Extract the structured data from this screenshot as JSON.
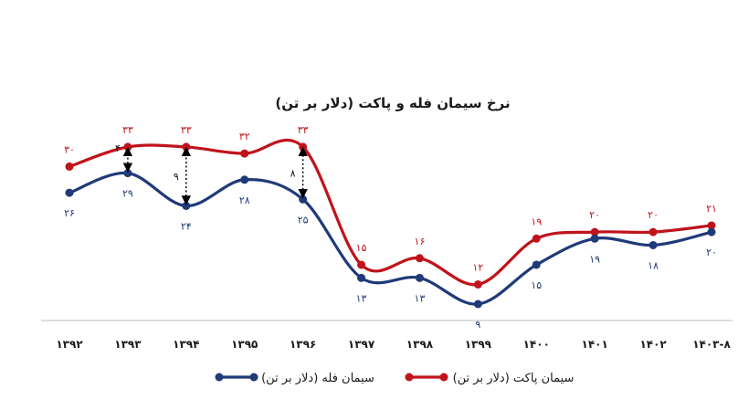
{
  "chart_data": {
    "type": "line",
    "title": "نرخ سیمان فله و پاکت (دلار بر تن)",
    "categories": [
      "۱۳۹۲",
      "۱۳۹۳",
      "۱۳۹۴",
      "۱۳۹۵",
      "۱۳۹۶",
      "۱۳۹۷",
      "۱۳۹۸",
      "۱۳۹۹",
      "۱۴۰۰",
      "۱۴۰۱",
      "۱۴۰۲",
      "۱۴۰۳-۸"
    ],
    "series": [
      {
        "name": "سیمان پاکت (دلار بر تن)",
        "color": "#c0131b",
        "values": [
          30,
          33,
          33,
          32,
          33,
          15,
          16,
          12,
          19,
          20,
          20,
          21
        ],
        "labels": [
          "۳۰",
          "۳۳",
          "۳۳",
          "۳۲",
          "۳۳",
          "۱۵",
          "۱۶",
          "۱۲",
          "۱۹",
          "۲۰",
          "۲۰",
          "۲۱"
        ]
      },
      {
        "name": "سیمان فله (دلار بر تن)",
        "color": "#1f3a78",
        "values": [
          26,
          29,
          24,
          28,
          25,
          13,
          13,
          9,
          15,
          19,
          18,
          20
        ],
        "labels": [
          "۲۶",
          "۲۹",
          "۲۴",
          "۲۸",
          "۲۵",
          "۱۳",
          "۱۳",
          "۹",
          "۱۵",
          "۱۹",
          "۱۸",
          "۲۰"
        ]
      }
    ],
    "gap_annotations": [
      {
        "category_index": 1,
        "label": "۴",
        "from": 29,
        "to": 33
      },
      {
        "category_index": 2,
        "label": "۹",
        "from": 24,
        "to": 33
      },
      {
        "category_index": 4,
        "label": "۸",
        "from": 25,
        "to": 33
      }
    ],
    "legend": {
      "position": "bottom",
      "items": [
        "سیمان پاکت (دلار بر تن)",
        "سیمان فله (دلار بر تن)"
      ]
    },
    "grid": false,
    "ylim": [
      9,
      33
    ]
  }
}
